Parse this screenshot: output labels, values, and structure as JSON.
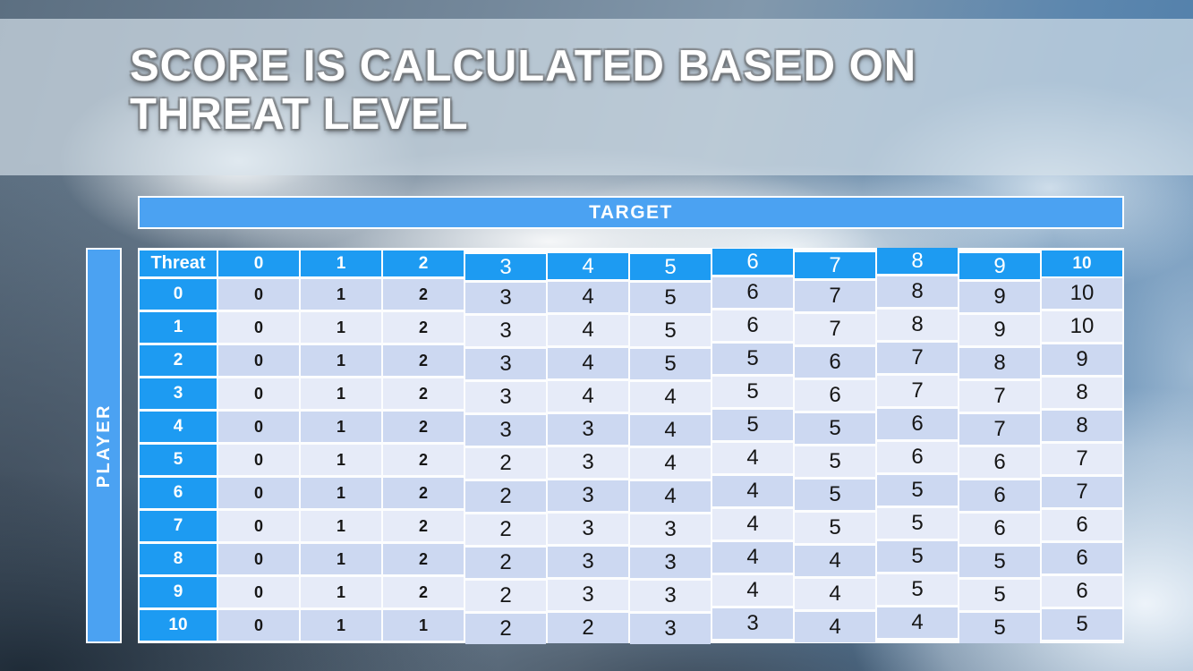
{
  "slide": {
    "title_line1": "SCORE IS CALCULATED BASED ON",
    "title_line2": "THREAT LEVEL"
  },
  "table": {
    "target_label": "TARGET",
    "player_label": "PLAYER",
    "corner_label": "Threat",
    "column_headers": [
      "0",
      "1",
      "2",
      "3",
      "4",
      "5",
      "6",
      "7",
      "8",
      "9",
      "10"
    ],
    "rows": [
      {
        "label": "0",
        "values": [
          0,
          1,
          2,
          3,
          4,
          5,
          6,
          7,
          8,
          9,
          10
        ]
      },
      {
        "label": "1",
        "values": [
          0,
          1,
          2,
          3,
          4,
          5,
          6,
          7,
          8,
          9,
          10
        ]
      },
      {
        "label": "2",
        "values": [
          0,
          1,
          2,
          3,
          4,
          5,
          5,
          6,
          7,
          8,
          9
        ]
      },
      {
        "label": "3",
        "values": [
          0,
          1,
          2,
          3,
          4,
          4,
          5,
          6,
          7,
          7,
          8
        ]
      },
      {
        "label": "4",
        "values": [
          0,
          1,
          2,
          3,
          3,
          4,
          5,
          5,
          6,
          7,
          8
        ]
      },
      {
        "label": "5",
        "values": [
          0,
          1,
          2,
          2,
          3,
          4,
          4,
          5,
          6,
          6,
          7
        ]
      },
      {
        "label": "6",
        "values": [
          0,
          1,
          2,
          2,
          3,
          4,
          4,
          5,
          5,
          6,
          7
        ]
      },
      {
        "label": "7",
        "values": [
          0,
          1,
          2,
          2,
          3,
          3,
          4,
          5,
          5,
          6,
          6
        ]
      },
      {
        "label": "8",
        "values": [
          0,
          1,
          2,
          2,
          3,
          3,
          4,
          4,
          5,
          5,
          6
        ]
      },
      {
        "label": "9",
        "values": [
          0,
          1,
          2,
          2,
          3,
          3,
          4,
          4,
          5,
          5,
          6
        ]
      },
      {
        "label": "10",
        "values": [
          0,
          1,
          1,
          2,
          2,
          3,
          3,
          4,
          4,
          5,
          5
        ]
      }
    ]
  },
  "colors": {
    "banner_blue": "#4BA2F2",
    "header_blue": "#1D9BF2",
    "row_tint_dark": "#CCD8F1",
    "row_tint_light": "#E6EBF8",
    "grid_white": "#FCFDFE",
    "title_text": "#FFFFFF",
    "cell_text": "#161616"
  }
}
